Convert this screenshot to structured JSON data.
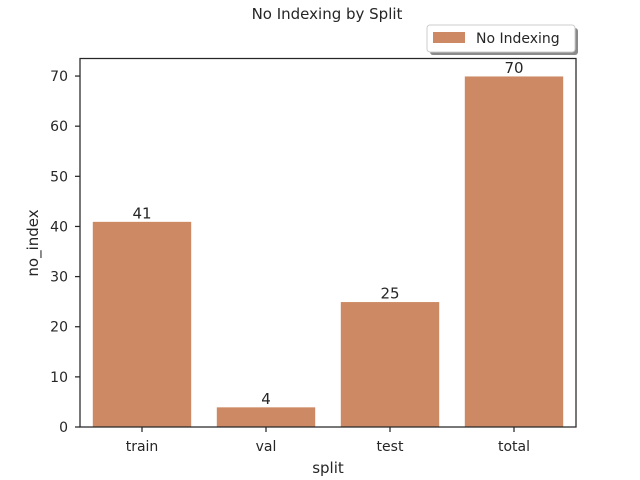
{
  "chart_data": {
    "type": "bar",
    "title": "No Indexing by Split",
    "xlabel": "split",
    "ylabel": "no_index",
    "categories": [
      "train",
      "val",
      "test",
      "total"
    ],
    "series": [
      {
        "name": "No Indexing",
        "values": [
          41,
          4,
          25,
          70
        ],
        "color": "#cc8963"
      }
    ],
    "data_labels": [
      "41",
      "4",
      "25",
      "70"
    ],
    "ylim": [
      0,
      73.5
    ],
    "yticks": [
      0,
      10,
      20,
      30,
      40,
      50,
      60,
      70
    ],
    "grid": false,
    "legend_position": "above-right"
  }
}
